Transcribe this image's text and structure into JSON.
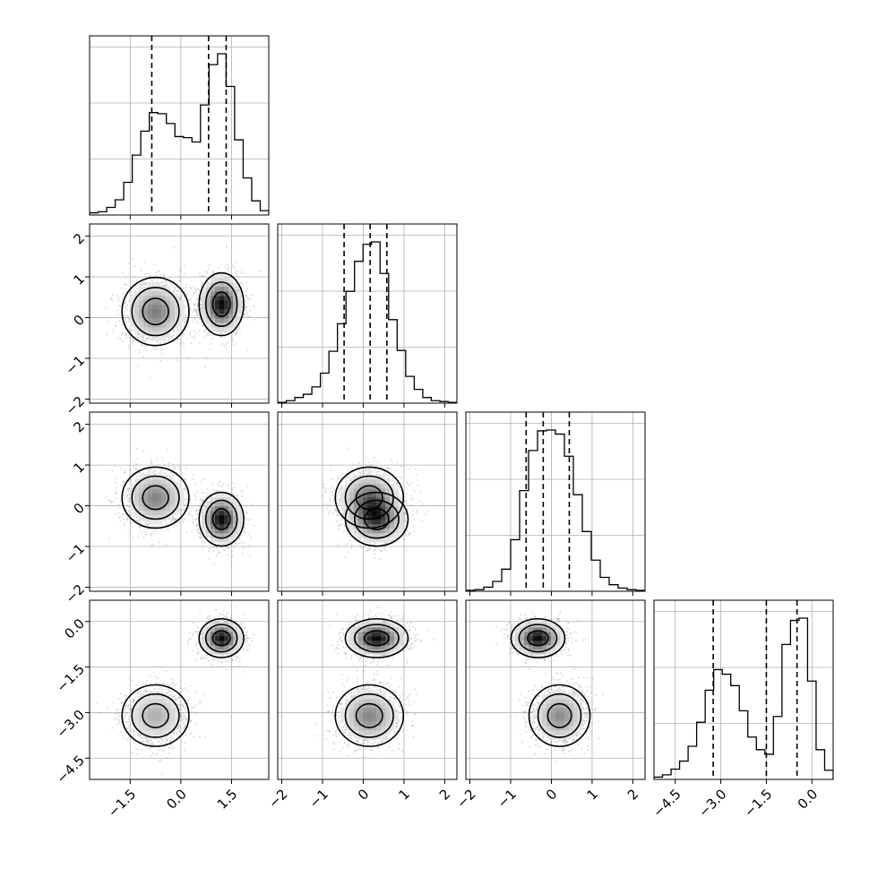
{
  "chart_data": {
    "type": "corner",
    "grid": true,
    "ranges": [
      [
        -2.7,
        2.6
      ],
      [
        -2.1,
        2.3
      ],
      [
        -2.1,
        2.3
      ],
      [
        -5.2,
        0.7
      ]
    ],
    "ticks": [
      [
        {
          "v": -1.5,
          "label": "−1.5"
        },
        {
          "v": 0.0,
          "label": "0.0"
        },
        {
          "v": 1.5,
          "label": "1.5"
        }
      ],
      [
        {
          "v": -2,
          "label": "−2"
        },
        {
          "v": -1,
          "label": "−1"
        },
        {
          "v": 0,
          "label": "0"
        },
        {
          "v": 1,
          "label": "1"
        },
        {
          "v": 2,
          "label": "2"
        }
      ],
      [
        {
          "v": -2,
          "label": "−2"
        },
        {
          "v": -1,
          "label": "−1"
        },
        {
          "v": 0,
          "label": "0"
        },
        {
          "v": 1,
          "label": "1"
        },
        {
          "v": 2,
          "label": "2"
        }
      ],
      [
        {
          "v": -4.5,
          "label": "−4.5"
        },
        {
          "v": -3.0,
          "label": "−3.0"
        },
        {
          "v": -1.5,
          "label": "−1.5"
        },
        {
          "v": 0.0,
          "label": "0.0"
        }
      ]
    ],
    "histograms": [
      {
        "param": 0,
        "bin_edges_range": [
          -2.7,
          2.6
        ],
        "counts": [
          2,
          3,
          7,
          14,
          30,
          55,
          77,
          94,
          93,
          84,
          72,
          71,
          67,
          101,
          138,
          148,
          118,
          69,
          34,
          13,
          4
        ],
        "quantiles": [
          -0.86,
          0.82,
          1.34
        ]
      },
      {
        "param": 1,
        "bin_edges_range": [
          -2.1,
          2.3
        ],
        "counts": [
          1,
          3,
          7,
          11,
          20,
          37,
          64,
          98,
          138,
          175,
          196,
          199,
          160,
          103,
          65,
          33,
          17,
          7,
          3,
          2,
          1
        ],
        "quantiles": [
          -0.47,
          0.17,
          0.58
        ]
      },
      {
        "param": 2,
        "bin_edges_range": [
          -2.1,
          2.3
        ],
        "counts": [
          1,
          2,
          5,
          12,
          27,
          63,
          123,
          172,
          196,
          197,
          192,
          165,
          118,
          73,
          38,
          17,
          8,
          4,
          2,
          1
        ],
        "quantiles": [
          -0.62,
          -0.2,
          0.44
        ]
      },
      {
        "param": 3,
        "bin_edges_range": [
          -5.2,
          0.7
        ],
        "counts": [
          2,
          4,
          9,
          16,
          29,
          50,
          78,
          96,
          92,
          82,
          60,
          37,
          26,
          22,
          55,
          118,
          139,
          141,
          86,
          26,
          8
        ],
        "quantiles": [
          -3.25,
          -1.5,
          -0.49
        ]
      }
    ],
    "components": [
      {
        "weight": 0.5,
        "mean": [
          -0.75,
          0.15,
          0.2,
          -3.1
        ],
        "sd": [
          0.45,
          0.38,
          0.34,
          0.46
        ]
      },
      {
        "weight": 0.5,
        "mean": [
          1.2,
          0.33,
          -0.33,
          -0.55
        ],
        "sd": [
          0.3,
          0.35,
          0.3,
          0.29
        ]
      }
    ]
  }
}
